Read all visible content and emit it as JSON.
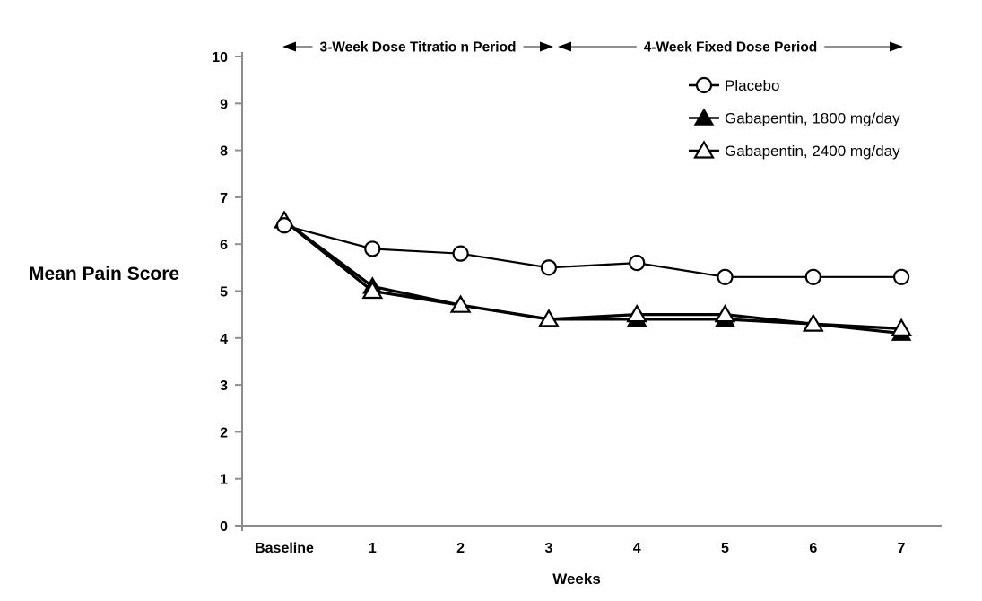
{
  "chart_data": {
    "type": "line",
    "title": "",
    "xlabel": "Weeks",
    "ylabel": "Mean Pain Score",
    "categories": [
      "Baseline",
      "1",
      "2",
      "3",
      "4",
      "5",
      "6",
      "7"
    ],
    "ylim": [
      0,
      10
    ],
    "yticks": [
      0,
      1,
      2,
      3,
      4,
      5,
      6,
      7,
      8,
      9,
      10
    ],
    "grid": false,
    "legend_position": "upper-right-inside",
    "series": [
      {
        "name": "Placebo",
        "marker": "open-circle",
        "values": [
          6.4,
          5.9,
          5.8,
          5.5,
          5.6,
          5.3,
          5.3,
          5.3
        ]
      },
      {
        "name": "Gabapentin, 1800 mg/day",
        "marker": "filled-triangle",
        "values": [
          6.5,
          5.1,
          4.7,
          4.4,
          4.4,
          4.4,
          4.3,
          4.1
        ]
      },
      {
        "name": "Gabapentin, 2400 mg/day",
        "marker": "open-triangle",
        "values": [
          6.5,
          5.0,
          4.7,
          4.4,
          4.5,
          4.5,
          4.3,
          4.2
        ]
      }
    ],
    "annotations": [
      {
        "label": "3-Week Dose Titratio n Period",
        "from_category": "Baseline",
        "to_category": "3"
      },
      {
        "label": "4-Week Fixed Dose Period",
        "from_category": "3",
        "to_category": "7"
      }
    ]
  },
  "colors": {
    "background": "#ffffff",
    "line": "#000000",
    "axis": "#8c8c8c",
    "annotation_line": "#909090",
    "text": "#000000",
    "marker_fill_open": "#ffffff"
  }
}
